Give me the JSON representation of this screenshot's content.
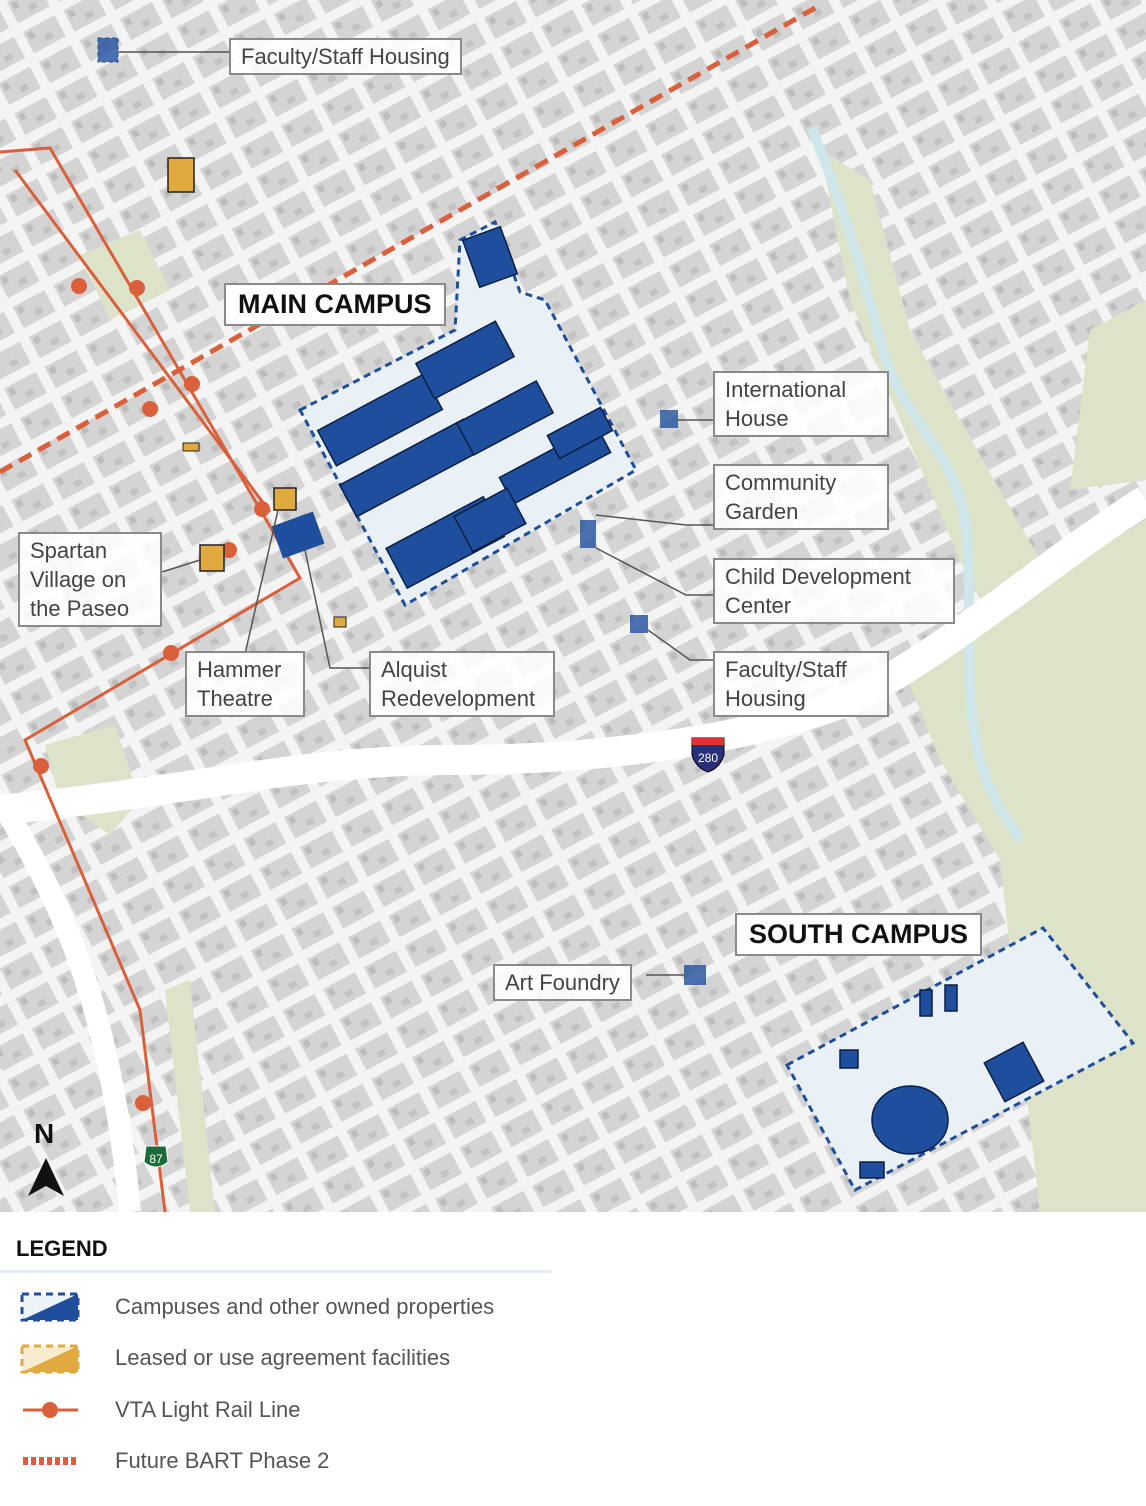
{
  "map": {
    "labels": {
      "faculty_staff_housing_north": "Faculty/Staff Housing",
      "main_campus": "MAIN CAMPUS",
      "international_house": "International\nHouse",
      "community_garden": "Community\nGarden",
      "child_development_center": "Child Development\nCenter",
      "faculty_staff_housing_east": "Faculty/Staff\nHousing",
      "spartan_village": "Spartan\nVillage on\nthe Paseo",
      "hammer_theatre": "Hammer\nTheatre",
      "alquist_redevelopment": "Alquist\nRedevelopment",
      "south_campus": "SOUTH CAMPUS",
      "art_foundry": "Art Foundry"
    },
    "highway_shields": [
      {
        "route": "280",
        "type": "interstate"
      },
      {
        "route": "87",
        "type": "state"
      }
    ],
    "north_arrow": "N",
    "colors": {
      "owned": "#1f4f9c",
      "leased": "#e0aa3e",
      "light_rail": "#d9603a",
      "bart": "#d9603a",
      "park": "#dce3c8",
      "creek": "#cfe6ea",
      "block": "#d6d6d6"
    }
  },
  "legend": {
    "title": "LEGEND",
    "items": [
      {
        "label": "Campuses and other owned properties",
        "symbol": "owned-swatch"
      },
      {
        "label": "Leased or use agreement facilities",
        "symbol": "leased-swatch"
      },
      {
        "label": "VTA Light Rail Line",
        "symbol": "light-rail-line"
      },
      {
        "label": "Future BART Phase 2",
        "symbol": "bart-dashed-line"
      }
    ]
  }
}
